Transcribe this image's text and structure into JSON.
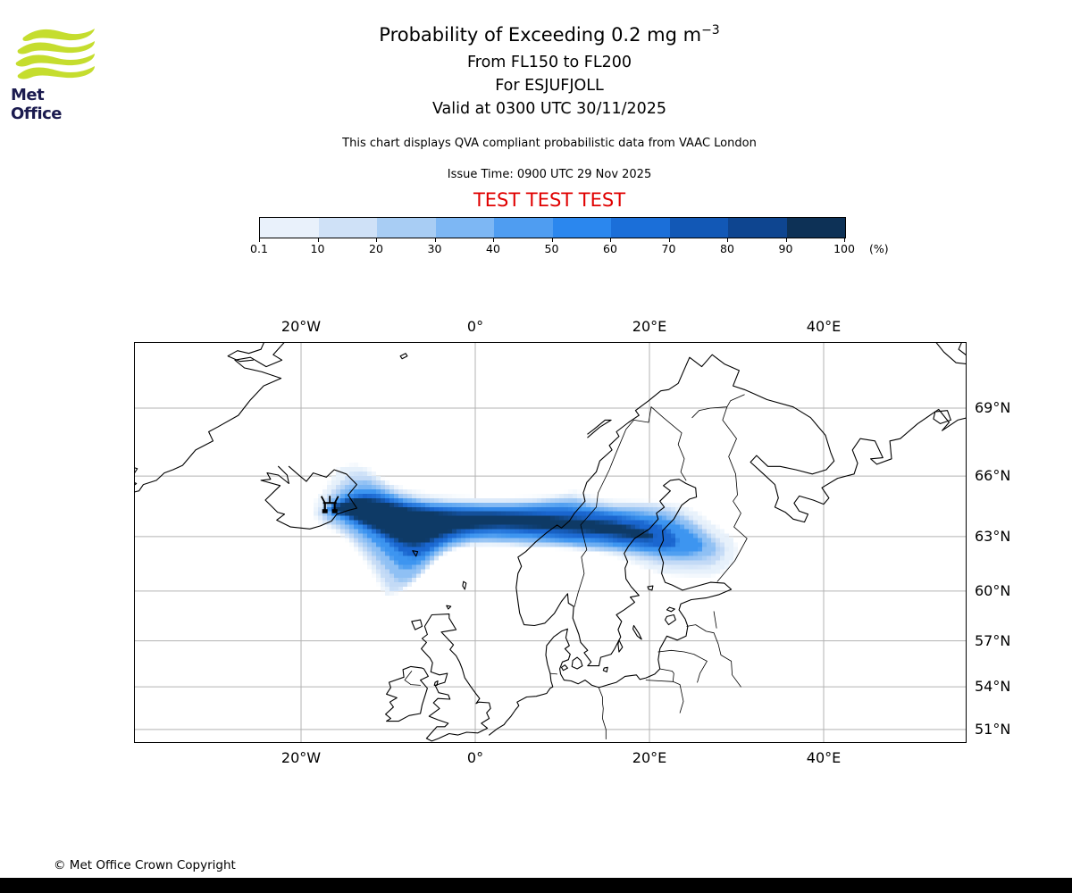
{
  "logo": {
    "brand": "Met Office",
    "wave_color": "#c5dd2e",
    "text_color": "#1b1b4f"
  },
  "header": {
    "title_main": "Probability of Exceeding 0.2 mg m",
    "title_exponent": "−3",
    "subtitle_flight_levels": "From FL150 to FL200",
    "subtitle_volcano": "For ESJUFJOLL",
    "subtitle_valid": "Valid at 0300 UTC 30/11/2025",
    "note": "This chart displays QVA compliant probabilistic data from VAAC London",
    "issue_time": "Issue Time: 0900 UTC 29 Nov 2025",
    "test_banner": "TEST TEST TEST",
    "test_banner_color": "#e00000"
  },
  "colorbar": {
    "tick_labels": [
      "0.1",
      "10",
      "20",
      "30",
      "40",
      "50",
      "60",
      "70",
      "80",
      "90",
      "100"
    ],
    "unit_label": "(%)",
    "segment_colors": [
      "#e9f1fb",
      "#cfe1f7",
      "#a8cdf4",
      "#7db7f4",
      "#4f9df1",
      "#2b87ee",
      "#1b6fd9",
      "#1258b6",
      "#0e4590",
      "#0d3156"
    ]
  },
  "map": {
    "grid_color": "#b3b3b3",
    "lon_ticks": [
      {
        "label": "20°W",
        "value": -20
      },
      {
        "label": "0°",
        "value": 0
      },
      {
        "label": "20°E",
        "value": 20
      },
      {
        "label": "40°E",
        "value": 40
      }
    ],
    "lat_ticks": [
      {
        "label": "69°N",
        "value": 69
      },
      {
        "label": "66°N",
        "value": 66
      },
      {
        "label": "63°N",
        "value": 63
      },
      {
        "label": "60°N",
        "value": 60
      },
      {
        "label": "57°N",
        "value": 57
      },
      {
        "label": "54°N",
        "value": 54
      },
      {
        "label": "51°N",
        "value": 51
      }
    ],
    "projection": {
      "type": "mercator",
      "lon_min": -39.1,
      "lon_max": 56.3,
      "lat_min": 50.1,
      "lat_max": 71.5
    }
  },
  "chart_data": {
    "type": "heatmap",
    "title": "Probability of Exceeding 0.2 mg m⁻³",
    "subtitle": "From FL150 to FL200, For ESJUFJOLL, Valid at 0300 UTC 30/11/2025",
    "units": "%",
    "legend_position": "top",
    "probability_bin_edges": [
      0.1,
      10,
      20,
      30,
      40,
      50,
      60,
      70,
      80,
      90,
      100
    ],
    "bin_colors": [
      "#e9f1fb",
      "#cfe1f7",
      "#a8cdf4",
      "#7db7f4",
      "#4f9df1",
      "#2b87ee",
      "#1b6fd9",
      "#1258b6",
      "#0e4590",
      "#0d3156"
    ],
    "volcano": {
      "name": "ESJUFJOLL",
      "lon": -16.7,
      "lat": 64.6
    },
    "contours": [
      {
        "min_probability": 0.1,
        "color": "#e7f1fb",
        "points": [
          [
            -18.6,
            64.1
          ],
          [
            -18.2,
            64.9
          ],
          [
            -17.2,
            65.4
          ],
          [
            -15.6,
            66.35
          ],
          [
            -13.8,
            66.5
          ],
          [
            -12.2,
            66.3
          ],
          [
            -10.2,
            65.7
          ],
          [
            -8.0,
            65.35
          ],
          [
            -5.0,
            65.1
          ],
          [
            -2.0,
            65.0
          ],
          [
            1.0,
            64.95
          ],
          [
            4.0,
            64.95
          ],
          [
            7.0,
            65.0
          ],
          [
            9.5,
            65.1
          ],
          [
            11.5,
            65.25
          ],
          [
            13.5,
            65.0
          ],
          [
            16.0,
            64.85
          ],
          [
            19.0,
            64.8
          ],
          [
            21.5,
            64.75
          ],
          [
            23.5,
            64.6
          ],
          [
            25.5,
            64.25
          ],
          [
            26.8,
            63.8
          ],
          [
            28.3,
            63.3
          ],
          [
            29.5,
            62.9
          ],
          [
            30.0,
            62.4
          ],
          [
            29.8,
            61.8
          ],
          [
            28.6,
            61.2
          ],
          [
            27.0,
            60.9
          ],
          [
            24.5,
            60.85
          ],
          [
            21.5,
            61.0
          ],
          [
            19.0,
            61.4
          ],
          [
            16.5,
            61.9
          ],
          [
            14.0,
            62.2
          ],
          [
            11.5,
            62.35
          ],
          [
            9.0,
            62.45
          ],
          [
            6.5,
            62.5
          ],
          [
            4.0,
            62.55
          ],
          [
            1.5,
            62.6
          ],
          [
            -1.0,
            62.55
          ],
          [
            -3.0,
            62.3
          ],
          [
            -4.6,
            61.8
          ],
          [
            -6.0,
            61.1
          ],
          [
            -7.5,
            60.4
          ],
          [
            -9.0,
            59.9
          ],
          [
            -10.2,
            59.75
          ],
          [
            -10.9,
            60.3
          ],
          [
            -11.8,
            61.1
          ],
          [
            -13.0,
            62.0
          ],
          [
            -14.5,
            62.8
          ],
          [
            -16.2,
            63.3
          ],
          [
            -17.6,
            63.6
          ]
        ]
      },
      {
        "min_probability": 10,
        "color": "#c3daf6",
        "points": [
          [
            -18.0,
            64.2
          ],
          [
            -17.3,
            64.9
          ],
          [
            -16.0,
            65.5
          ],
          [
            -14.3,
            66.1
          ],
          [
            -12.8,
            66.15
          ],
          [
            -11.0,
            65.8
          ],
          [
            -9.0,
            65.3
          ],
          [
            -6.5,
            65.0
          ],
          [
            -3.5,
            64.85
          ],
          [
            0.0,
            64.8
          ],
          [
            3.5,
            64.8
          ],
          [
            6.5,
            64.85
          ],
          [
            9.0,
            64.95
          ],
          [
            11.0,
            65.05
          ],
          [
            13.0,
            64.85
          ],
          [
            15.5,
            64.7
          ],
          [
            18.0,
            64.65
          ],
          [
            20.5,
            64.6
          ],
          [
            22.5,
            64.45
          ],
          [
            24.3,
            64.05
          ],
          [
            25.8,
            63.6
          ],
          [
            27.2,
            63.1
          ],
          [
            28.3,
            62.7
          ],
          [
            28.8,
            62.25
          ],
          [
            28.2,
            61.8
          ],
          [
            27.0,
            61.45
          ],
          [
            24.8,
            61.35
          ],
          [
            22.0,
            61.45
          ],
          [
            19.5,
            61.75
          ],
          [
            17.0,
            62.1
          ],
          [
            14.5,
            62.3
          ],
          [
            12.0,
            62.4
          ],
          [
            9.5,
            62.5
          ],
          [
            7.0,
            62.55
          ],
          [
            4.5,
            62.6
          ],
          [
            2.0,
            62.65
          ],
          [
            -0.5,
            62.6
          ],
          [
            -2.6,
            62.4
          ],
          [
            -4.2,
            62.0
          ],
          [
            -5.6,
            61.3
          ],
          [
            -7.0,
            60.6
          ],
          [
            -8.4,
            60.1
          ],
          [
            -9.6,
            60.0
          ],
          [
            -10.5,
            60.6
          ],
          [
            -11.5,
            61.4
          ],
          [
            -12.8,
            62.2
          ],
          [
            -14.3,
            62.95
          ],
          [
            -15.9,
            63.45
          ],
          [
            -17.2,
            63.75
          ]
        ]
      },
      {
        "min_probability": 30,
        "color": "#8fc0f4",
        "points": [
          [
            -17.5,
            64.3
          ],
          [
            -16.7,
            64.85
          ],
          [
            -15.4,
            65.35
          ],
          [
            -13.9,
            65.75
          ],
          [
            -12.4,
            65.8
          ],
          [
            -10.8,
            65.5
          ],
          [
            -8.8,
            65.1
          ],
          [
            -6.0,
            64.85
          ],
          [
            -3.0,
            64.75
          ],
          [
            0.5,
            64.7
          ],
          [
            4.0,
            64.7
          ],
          [
            7.0,
            64.75
          ],
          [
            9.5,
            64.85
          ],
          [
            11.5,
            64.9
          ],
          [
            13.5,
            64.6
          ],
          [
            16.0,
            64.5
          ],
          [
            18.5,
            64.45
          ],
          [
            21.0,
            64.35
          ],
          [
            23.0,
            64.1
          ],
          [
            24.8,
            63.7
          ],
          [
            26.2,
            63.2
          ],
          [
            27.3,
            62.75
          ],
          [
            27.8,
            62.35
          ],
          [
            27.2,
            62.0
          ],
          [
            25.8,
            61.8
          ],
          [
            23.5,
            61.75
          ],
          [
            21.0,
            61.85
          ],
          [
            18.5,
            62.1
          ],
          [
            16.0,
            62.3
          ],
          [
            13.5,
            62.4
          ],
          [
            11.0,
            62.5
          ],
          [
            8.5,
            62.6
          ],
          [
            6.0,
            62.65
          ],
          [
            3.5,
            62.7
          ],
          [
            1.0,
            62.75
          ],
          [
            -1.5,
            62.65
          ],
          [
            -3.3,
            62.35
          ],
          [
            -4.8,
            61.85
          ],
          [
            -6.2,
            61.2
          ],
          [
            -7.6,
            60.65
          ],
          [
            -8.9,
            60.55
          ],
          [
            -9.9,
            61.1
          ],
          [
            -11.1,
            61.8
          ],
          [
            -12.5,
            62.5
          ],
          [
            -14.0,
            63.1
          ],
          [
            -15.6,
            63.6
          ],
          [
            -16.9,
            63.9
          ]
        ]
      },
      {
        "min_probability": 50,
        "color": "#3d95f0",
        "points": [
          [
            -17.1,
            64.4
          ],
          [
            -16.2,
            64.8
          ],
          [
            -14.9,
            65.15
          ],
          [
            -13.4,
            65.45
          ],
          [
            -11.9,
            65.45
          ],
          [
            -10.3,
            65.2
          ],
          [
            -8.3,
            64.9
          ],
          [
            -5.5,
            64.7
          ],
          [
            -2.5,
            64.6
          ],
          [
            1.0,
            64.55
          ],
          [
            4.5,
            64.55
          ],
          [
            7.5,
            64.6
          ],
          [
            10.0,
            64.65
          ],
          [
            12.0,
            64.6
          ],
          [
            14.0,
            64.4
          ],
          [
            16.5,
            64.3
          ],
          [
            19.0,
            64.2
          ],
          [
            21.3,
            64.0
          ],
          [
            23.0,
            63.7
          ],
          [
            24.5,
            63.3
          ],
          [
            25.7,
            62.9
          ],
          [
            26.3,
            62.5
          ],
          [
            25.8,
            62.2
          ],
          [
            24.3,
            62.05
          ],
          [
            22.0,
            62.05
          ],
          [
            19.5,
            62.2
          ],
          [
            17.0,
            62.4
          ],
          [
            14.5,
            62.55
          ],
          [
            12.0,
            62.65
          ],
          [
            9.5,
            62.75
          ],
          [
            7.0,
            62.85
          ],
          [
            4.5,
            62.95
          ],
          [
            2.0,
            63.0
          ],
          [
            -0.5,
            62.95
          ],
          [
            -2.8,
            62.7
          ],
          [
            -4.5,
            62.3
          ],
          [
            -6.0,
            61.7
          ],
          [
            -7.4,
            61.3
          ],
          [
            -8.5,
            61.3
          ],
          [
            -9.6,
            61.8
          ],
          [
            -10.9,
            62.4
          ],
          [
            -12.3,
            62.95
          ],
          [
            -13.9,
            63.45
          ],
          [
            -15.5,
            63.9
          ],
          [
            -16.6,
            64.1
          ]
        ]
      },
      {
        "min_probability": 70,
        "color": "#1a66cf",
        "points": [
          [
            -16.7,
            64.45
          ],
          [
            -15.7,
            64.75
          ],
          [
            -14.3,
            65.0
          ],
          [
            -12.8,
            65.15
          ],
          [
            -11.3,
            65.1
          ],
          [
            -9.8,
            64.9
          ],
          [
            -7.8,
            64.65
          ],
          [
            -5.0,
            64.5
          ],
          [
            -2.0,
            64.4
          ],
          [
            1.5,
            64.35
          ],
          [
            5.0,
            64.35
          ],
          [
            8.0,
            64.4
          ],
          [
            10.5,
            64.4
          ],
          [
            12.5,
            64.3
          ],
          [
            14.5,
            64.15
          ],
          [
            16.8,
            64.0
          ],
          [
            19.0,
            63.85
          ],
          [
            21.0,
            63.6
          ],
          [
            22.4,
            63.25
          ],
          [
            23.2,
            62.85
          ],
          [
            23.0,
            62.5
          ],
          [
            21.8,
            62.4
          ],
          [
            19.8,
            62.5
          ],
          [
            17.5,
            62.65
          ],
          [
            15.0,
            62.8
          ],
          [
            12.5,
            62.9
          ],
          [
            10.0,
            63.0
          ],
          [
            7.5,
            63.1
          ],
          [
            5.0,
            63.2
          ],
          [
            2.5,
            63.25
          ],
          [
            0.0,
            63.2
          ],
          [
            -2.2,
            63.0
          ],
          [
            -4.0,
            62.65
          ],
          [
            -5.5,
            62.2
          ],
          [
            -6.8,
            61.9
          ],
          [
            -7.9,
            61.95
          ],
          [
            -9.2,
            62.4
          ],
          [
            -10.6,
            62.9
          ],
          [
            -12.1,
            63.35
          ],
          [
            -13.7,
            63.75
          ],
          [
            -15.3,
            64.1
          ],
          [
            -16.2,
            64.2
          ]
        ]
      },
      {
        "min_probability": 90,
        "color": "#0e3a66",
        "points": [
          [
            -16.3,
            64.5
          ],
          [
            -15.2,
            64.75
          ],
          [
            -13.8,
            64.92
          ],
          [
            -12.4,
            64.95
          ],
          [
            -11.0,
            64.85
          ],
          [
            -9.5,
            64.65
          ],
          [
            -7.5,
            64.45
          ],
          [
            -4.8,
            64.3
          ],
          [
            -1.8,
            64.2
          ],
          [
            1.8,
            64.15
          ],
          [
            5.2,
            64.1
          ],
          [
            8.2,
            64.05
          ],
          [
            11.0,
            63.95
          ],
          [
            13.5,
            63.85
          ],
          [
            15.8,
            63.7
          ],
          [
            18.0,
            63.5
          ],
          [
            19.8,
            63.25
          ],
          [
            20.6,
            63.0
          ],
          [
            20.0,
            62.85
          ],
          [
            18.0,
            62.95
          ],
          [
            15.5,
            63.1
          ],
          [
            13.0,
            63.2
          ],
          [
            10.5,
            63.3
          ],
          [
            8.0,
            63.4
          ],
          [
            5.5,
            63.45
          ],
          [
            3.0,
            63.5
          ],
          [
            0.5,
            63.45
          ],
          [
            -1.8,
            63.3
          ],
          [
            -3.8,
            63.05
          ],
          [
            -5.5,
            62.7
          ],
          [
            -7.0,
            62.5
          ],
          [
            -8.3,
            62.6
          ],
          [
            -9.8,
            63.0
          ],
          [
            -11.4,
            63.4
          ],
          [
            -13.0,
            63.75
          ],
          [
            -14.8,
            64.1
          ],
          [
            -15.9,
            64.25
          ]
        ]
      }
    ]
  },
  "footer": {
    "copyright": "© Met Office Crown Copyright"
  }
}
